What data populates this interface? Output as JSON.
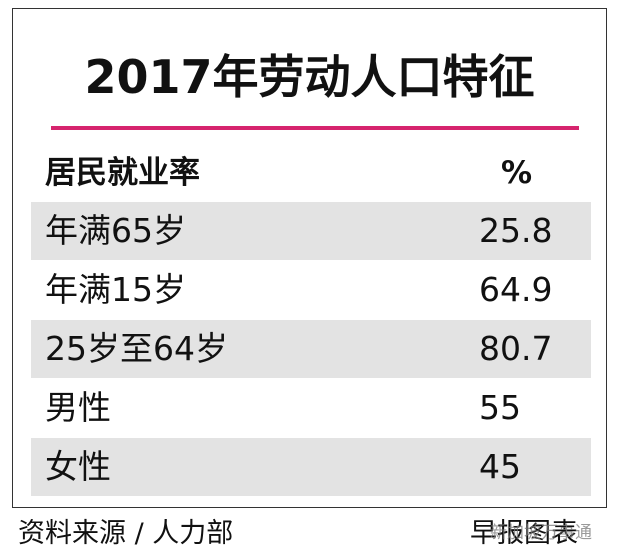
{
  "header": {
    "title": "2017年劳动人口特征"
  },
  "table": {
    "columns": [
      "居民就业率",
      "%"
    ],
    "rows": [
      [
        "年满65岁",
        25.8
      ],
      [
        "年满15岁",
        64.9
      ],
      [
        "25岁至64岁",
        80.7
      ],
      [
        "男性",
        55
      ],
      [
        "女性",
        45
      ]
    ]
  },
  "footer": {
    "source": "资料来源 / 人力部",
    "credit": "早报图表",
    "watermark": "新加坡万事通"
  }
}
